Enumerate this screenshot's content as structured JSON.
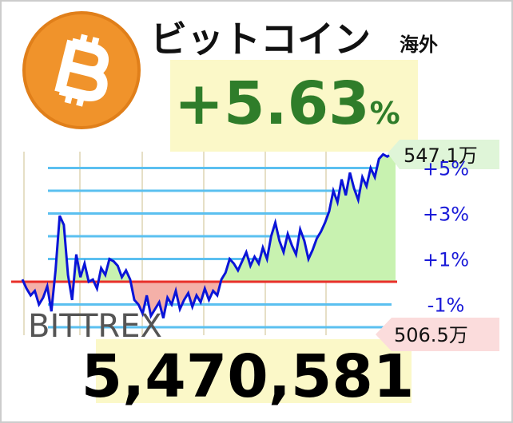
{
  "chart_data": {
    "type": "line",
    "title": "ビットコイン",
    "subtitle": "海外",
    "change": "+5.63",
    "change_unit": "%",
    "exchange": "BITTREX",
    "price": "5,470,581",
    "high_label": "547.1万",
    "low_label": "506.5万",
    "series": [
      {
        "color": "#0a14d8",
        "values": [
          0.1,
          -0.3,
          -0.6,
          -0.4,
          -1.0,
          -0.7,
          -0.2,
          -1.3,
          0.5,
          2.9,
          2.5,
          0.3,
          -0.8,
          1.2,
          0.2,
          0.8,
          0.0,
          0.1,
          -0.3,
          0.6,
          0.3,
          1.0,
          0.9,
          0.7,
          0.2,
          0.5,
          0.1,
          -0.8,
          -1.0,
          -1.4,
          -0.6,
          -1.5,
          -1.2,
          -0.9,
          -1.6,
          -0.7,
          -1.0,
          -0.4,
          -1.2,
          -0.8,
          -0.5,
          -1.1,
          -0.6,
          -0.9,
          -0.3,
          -0.8,
          -0.4,
          -0.6,
          0.1,
          0.4,
          1.0,
          0.8,
          0.5,
          0.9,
          1.3,
          0.7,
          1.1,
          0.8,
          1.5,
          1.0,
          2.0,
          2.6,
          1.8,
          1.3,
          2.1,
          1.6,
          1.2,
          2.3,
          1.8,
          1.0,
          1.4,
          1.9,
          2.2,
          2.6,
          3.1,
          4.0,
          3.5,
          4.5,
          3.8,
          4.8,
          4.1,
          3.6,
          4.6,
          4.2,
          5.0,
          4.6,
          5.4,
          5.6,
          5.5,
          5.63,
          5.6
        ]
      }
    ],
    "baseline": 0,
    "baseline_color": "#e8302a",
    "grid_color": "#5bc0f0",
    "ylim": [
      -2.35,
      5.72
    ],
    "yticks": [
      {
        "value": 5,
        "label": "+5%"
      },
      {
        "value": 3,
        "label": "+3%"
      },
      {
        "value": 1,
        "label": "+1%"
      },
      {
        "value": -1,
        "label": "-1%"
      }
    ],
    "minor_yticks": [
      4,
      2,
      -2
    ]
  }
}
